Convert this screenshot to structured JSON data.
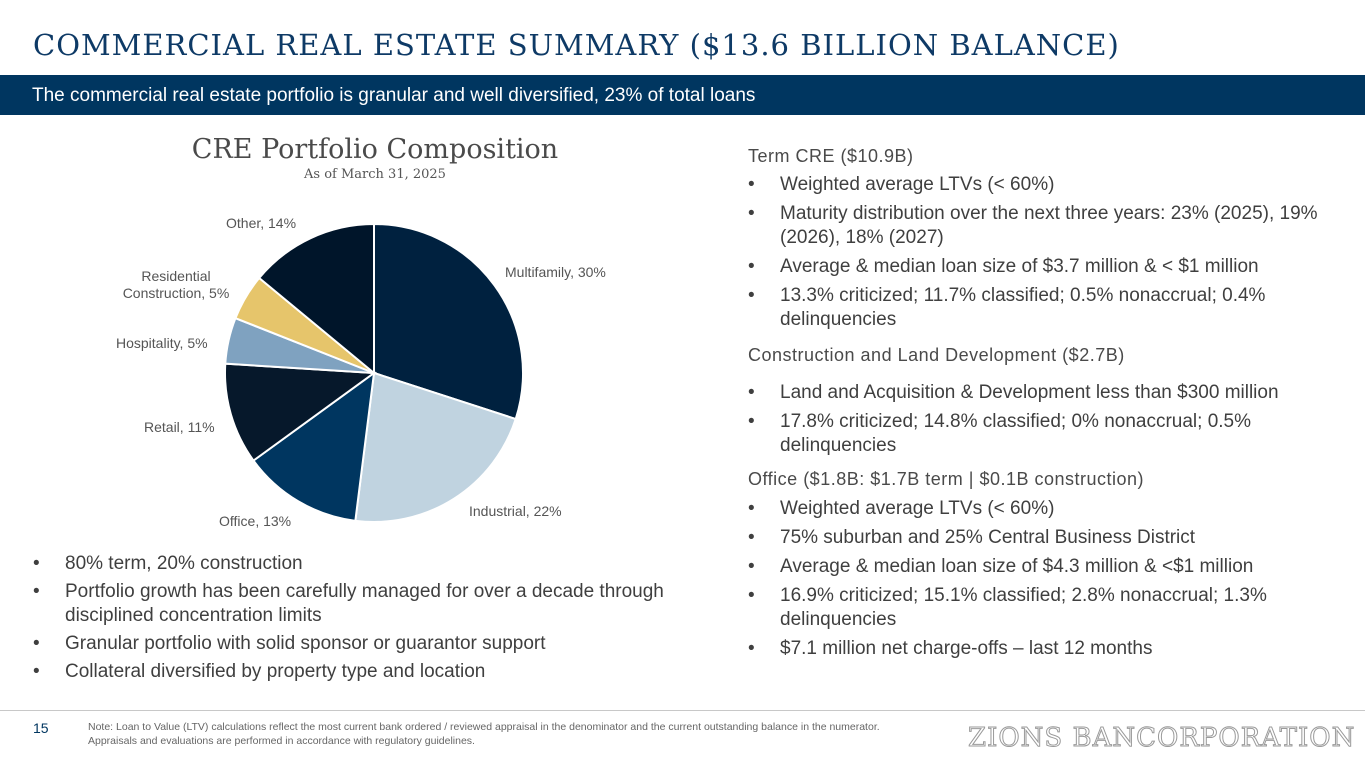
{
  "header": {
    "title": "COMMERCIAL REAL ESTATE SUMMARY ($13.6 BILLION BALANCE)",
    "banner": "The commercial real estate portfolio is granular and well diversified, 23% of total loans"
  },
  "chart_data": {
    "type": "pie",
    "title": "CRE Portfolio Composition",
    "subtitle": "As of March 31, 2025",
    "start_angle_deg": 0,
    "direction": "clockwise",
    "slices": [
      {
        "label": "Multifamily, 30%",
        "value": 30,
        "color": "#00213f"
      },
      {
        "label": "Industrial, 22%",
        "value": 22,
        "color": "#c0d3e0"
      },
      {
        "label": "Office, 13%",
        "value": 13,
        "color": "#003660"
      },
      {
        "label": "Retail, 11%",
        "value": 11,
        "color": "#06182b"
      },
      {
        "label": "Hospitality, 5%",
        "value": 5,
        "color": "#7fa2c0"
      },
      {
        "label": "Residential Construction, 5%",
        "value": 5,
        "color": "#e6c56b"
      },
      {
        "label": "Other, 14%",
        "value": 14,
        "color": "#00152a"
      }
    ]
  },
  "left_bullets": [
    "80% term, 20% construction",
    "Portfolio growth has been carefully managed for over a decade through disciplined concentration limits",
    "Granular portfolio with solid sponsor or guarantor support",
    "Collateral diversified by property type and location"
  ],
  "term": {
    "heading": "Term CRE ($10.9B)",
    "bullets": [
      "Weighted average LTVs (< 60%)",
      "Maturity distribution over the next three years: 23% (2025), 19% (2026), 18% (2027)",
      "Average & median loan size of $3.7 million & < $1 million",
      "13.3% criticized; 11.7% classified; 0.5% nonaccrual; 0.4% delinquencies"
    ]
  },
  "construction": {
    "heading": "Construction and Land Development ($2.7B)",
    "bullets": [
      "Land and Acquisition & Development less than $300 million",
      "17.8% criticized; 14.8% classified; 0% nonaccrual; 0.5% delinquencies"
    ]
  },
  "office": {
    "heading": "Office ($1.8B: $1.7B term | $0.1B construction)",
    "bullets": [
      "Weighted average LTVs (< 60%)",
      "75% suburban and 25% Central Business District",
      "Average & median loan size of $4.3 million & <$1 million",
      "16.9% criticized; 15.1% classified; 2.8% nonaccrual; 1.3% delinquencies",
      "$7.1 million net charge-offs – last 12 months"
    ]
  },
  "footer": {
    "page": "15",
    "note": "Note: Loan to Value (LTV) calculations reflect the most current bank ordered / reviewed appraisal in the denominator and the current outstanding balance in the numerator. Appraisals and evaluations are performed in accordance with regulatory guidelines.",
    "logo": "ZIONS BANCORPORATION"
  }
}
